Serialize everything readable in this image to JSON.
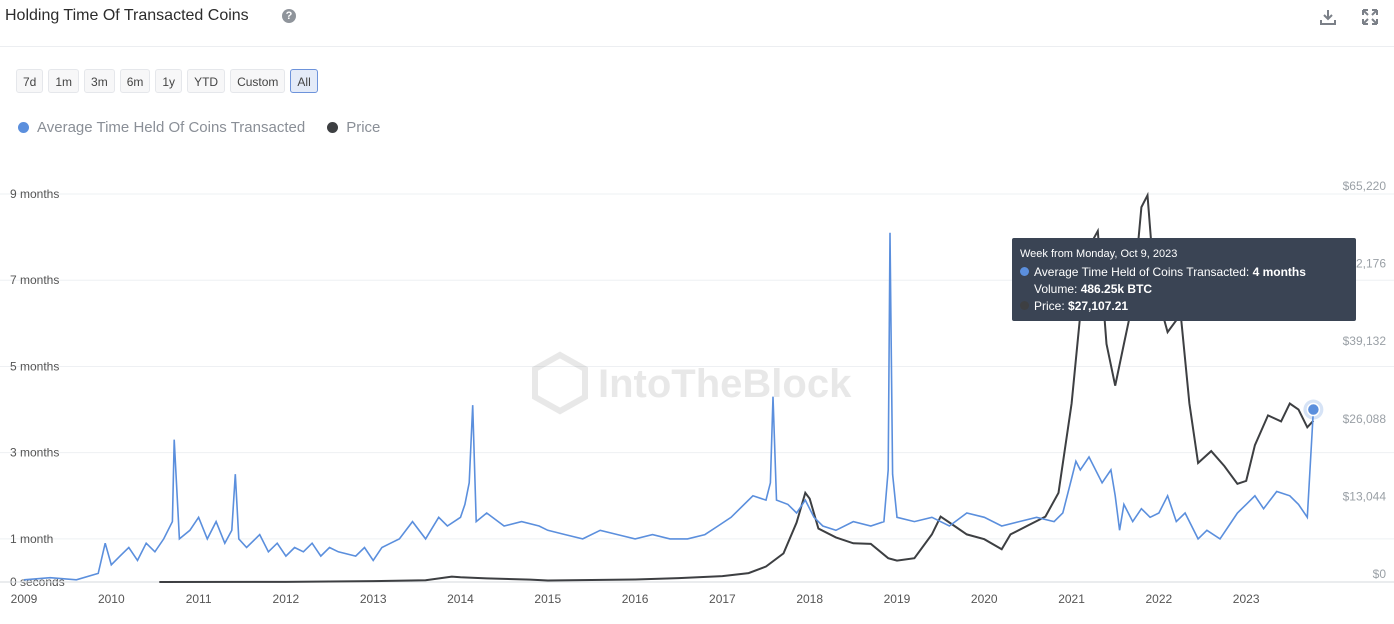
{
  "header": {
    "title": "Holding Time Of Transacted Coins",
    "help_icon": "question-circle-icon",
    "download_icon": "download-icon",
    "expand_icon": "expand-icon"
  },
  "ranges": [
    {
      "label": "7d"
    },
    {
      "label": "1m"
    },
    {
      "label": "3m"
    },
    {
      "label": "6m"
    },
    {
      "label": "1y"
    },
    {
      "label": "YTD"
    },
    {
      "label": "Custom"
    },
    {
      "label": "All",
      "active": true
    }
  ],
  "colors": {
    "avg": "#5b8fdd",
    "price": "#3d3f42",
    "grid": "#eef0f3"
  },
  "watermark": "IntoTheBlock",
  "tooltip": {
    "header": "Week from Monday, Oct 9, 2023",
    "avg_label": "Average Time Held of Coins Transacted:",
    "avg_value": "4 months",
    "volume_label": "Volume:",
    "volume_value": "486.25k BTC",
    "price_label": "Price:",
    "price_value": "$27,107.21"
  },
  "chart_data": {
    "type": "line",
    "x_ticks": [
      "2009",
      "2010",
      "2011",
      "2012",
      "2013",
      "2014",
      "2015",
      "2016",
      "2017",
      "2018",
      "2019",
      "2020",
      "2021",
      "2022",
      "2023"
    ],
    "y_left_ticks": [
      "0 seconds",
      "1 month",
      "3 months",
      "5 months",
      "7 months",
      "9 months"
    ],
    "y_right_ticks": [
      "$0",
      "$13,044",
      "$26,088",
      "$39,132",
      "$52,176",
      "$65,220"
    ],
    "y_left_unit": "months",
    "y_left_max": 9,
    "y_right_max": 65220,
    "legend": [
      "Average Time Held Of Coins Transacted",
      "Price"
    ],
    "series": [
      {
        "name": "Average Time Held Of Coins Transacted",
        "axis": "left",
        "points": [
          [
            2009.0,
            0.05
          ],
          [
            2009.3,
            0.1
          ],
          [
            2009.6,
            0.05
          ],
          [
            2009.85,
            0.2
          ],
          [
            2009.93,
            0.9
          ],
          [
            2010.0,
            0.4
          ],
          [
            2010.1,
            0.6
          ],
          [
            2010.2,
            0.8
          ],
          [
            2010.3,
            0.5
          ],
          [
            2010.4,
            0.9
          ],
          [
            2010.5,
            0.7
          ],
          [
            2010.6,
            1.0
          ],
          [
            2010.7,
            1.4
          ],
          [
            2010.72,
            3.3
          ],
          [
            2010.78,
            1.0
          ],
          [
            2010.9,
            1.2
          ],
          [
            2011.0,
            1.5
          ],
          [
            2011.1,
            1.0
          ],
          [
            2011.2,
            1.4
          ],
          [
            2011.3,
            0.9
          ],
          [
            2011.38,
            1.2
          ],
          [
            2011.42,
            2.5
          ],
          [
            2011.46,
            1.0
          ],
          [
            2011.55,
            0.8
          ],
          [
            2011.7,
            1.1
          ],
          [
            2011.8,
            0.7
          ],
          [
            2011.9,
            0.9
          ],
          [
            2012.0,
            0.6
          ],
          [
            2012.1,
            0.8
          ],
          [
            2012.2,
            0.7
          ],
          [
            2012.3,
            0.9
          ],
          [
            2012.4,
            0.6
          ],
          [
            2012.5,
            0.8
          ],
          [
            2012.6,
            0.7
          ],
          [
            2012.8,
            0.6
          ],
          [
            2012.9,
            0.8
          ],
          [
            2013.0,
            0.5
          ],
          [
            2013.1,
            0.8
          ],
          [
            2013.2,
            0.9
          ],
          [
            2013.3,
            1.0
          ],
          [
            2013.45,
            1.4
          ],
          [
            2013.6,
            1.0
          ],
          [
            2013.75,
            1.5
          ],
          [
            2013.85,
            1.3
          ],
          [
            2014.0,
            1.5
          ],
          [
            2014.05,
            1.8
          ],
          [
            2014.1,
            2.3
          ],
          [
            2014.14,
            4.1
          ],
          [
            2014.18,
            1.4
          ],
          [
            2014.3,
            1.6
          ],
          [
            2014.5,
            1.3
          ],
          [
            2014.7,
            1.4
          ],
          [
            2014.9,
            1.3
          ],
          [
            2015.0,
            1.2
          ],
          [
            2015.2,
            1.1
          ],
          [
            2015.4,
            1.0
          ],
          [
            2015.6,
            1.2
          ],
          [
            2015.8,
            1.1
          ],
          [
            2016.0,
            1.0
          ],
          [
            2016.2,
            1.1
          ],
          [
            2016.4,
            1.0
          ],
          [
            2016.6,
            1.0
          ],
          [
            2016.8,
            1.1
          ],
          [
            2016.95,
            1.3
          ],
          [
            2017.1,
            1.5
          ],
          [
            2017.2,
            1.7
          ],
          [
            2017.35,
            2.0
          ],
          [
            2017.5,
            1.9
          ],
          [
            2017.55,
            2.3
          ],
          [
            2017.58,
            4.3
          ],
          [
            2017.62,
            1.9
          ],
          [
            2017.75,
            1.8
          ],
          [
            2017.85,
            1.6
          ],
          [
            2017.95,
            1.9
          ],
          [
            2018.05,
            1.5
          ],
          [
            2018.15,
            1.3
          ],
          [
            2018.3,
            1.2
          ],
          [
            2018.5,
            1.4
          ],
          [
            2018.7,
            1.3
          ],
          [
            2018.85,
            1.4
          ],
          [
            2018.9,
            2.6
          ],
          [
            2018.92,
            8.1
          ],
          [
            2018.95,
            2.5
          ],
          [
            2019.0,
            1.5
          ],
          [
            2019.2,
            1.4
          ],
          [
            2019.4,
            1.5
          ],
          [
            2019.6,
            1.3
          ],
          [
            2019.8,
            1.6
          ],
          [
            2020.0,
            1.5
          ],
          [
            2020.2,
            1.3
          ],
          [
            2020.4,
            1.4
          ],
          [
            2020.6,
            1.5
          ],
          [
            2020.8,
            1.4
          ],
          [
            2020.9,
            1.6
          ],
          [
            2021.0,
            2.4
          ],
          [
            2021.05,
            2.8
          ],
          [
            2021.1,
            2.6
          ],
          [
            2021.2,
            2.9
          ],
          [
            2021.35,
            2.3
          ],
          [
            2021.45,
            2.6
          ],
          [
            2021.5,
            2.0
          ],
          [
            2021.55,
            1.2
          ],
          [
            2021.6,
            1.8
          ],
          [
            2021.7,
            1.4
          ],
          [
            2021.8,
            1.7
          ],
          [
            2021.9,
            1.5
          ],
          [
            2022.0,
            1.6
          ],
          [
            2022.1,
            2.0
          ],
          [
            2022.2,
            1.4
          ],
          [
            2022.3,
            1.6
          ],
          [
            2022.45,
            1.0
          ],
          [
            2022.55,
            1.2
          ],
          [
            2022.7,
            1.0
          ],
          [
            2022.8,
            1.3
          ],
          [
            2022.9,
            1.6
          ],
          [
            2023.0,
            1.8
          ],
          [
            2023.1,
            2.0
          ],
          [
            2023.2,
            1.7
          ],
          [
            2023.35,
            2.1
          ],
          [
            2023.5,
            2.0
          ],
          [
            2023.6,
            1.8
          ],
          [
            2023.7,
            1.5
          ],
          [
            2023.77,
            4.0
          ]
        ]
      },
      {
        "name": "Price",
        "axis": "right",
        "points": [
          [
            2010.55,
            0
          ],
          [
            2012.0,
            20
          ],
          [
            2013.0,
            150
          ],
          [
            2013.6,
            300
          ],
          [
            2013.9,
            900
          ],
          [
            2014.0,
            800
          ],
          [
            2014.3,
            600
          ],
          [
            2014.8,
            400
          ],
          [
            2015.0,
            250
          ],
          [
            2016.0,
            420
          ],
          [
            2016.5,
            650
          ],
          [
            2017.0,
            1000
          ],
          [
            2017.3,
            1500
          ],
          [
            2017.5,
            2600
          ],
          [
            2017.7,
            4800
          ],
          [
            2017.85,
            10000
          ],
          [
            2017.95,
            15000
          ],
          [
            2018.0,
            14000
          ],
          [
            2018.1,
            9000
          ],
          [
            2018.3,
            7500
          ],
          [
            2018.5,
            6500
          ],
          [
            2018.7,
            6400
          ],
          [
            2018.9,
            4000
          ],
          [
            2019.0,
            3600
          ],
          [
            2019.2,
            4000
          ],
          [
            2019.4,
            8000
          ],
          [
            2019.5,
            11000
          ],
          [
            2019.6,
            10000
          ],
          [
            2019.8,
            8000
          ],
          [
            2020.0,
            7200
          ],
          [
            2020.2,
            5500
          ],
          [
            2020.3,
            8000
          ],
          [
            2020.5,
            9500
          ],
          [
            2020.7,
            11000
          ],
          [
            2020.85,
            15000
          ],
          [
            2021.0,
            30000
          ],
          [
            2021.1,
            45000
          ],
          [
            2021.15,
            55000
          ],
          [
            2021.3,
            59000
          ],
          [
            2021.4,
            40000
          ],
          [
            2021.5,
            33000
          ],
          [
            2021.6,
            40000
          ],
          [
            2021.7,
            47000
          ],
          [
            2021.8,
            63000
          ],
          [
            2021.87,
            65000
          ],
          [
            2021.95,
            50000
          ],
          [
            2022.1,
            42000
          ],
          [
            2022.25,
            45000
          ],
          [
            2022.35,
            30000
          ],
          [
            2022.45,
            20000
          ],
          [
            2022.6,
            22000
          ],
          [
            2022.75,
            19500
          ],
          [
            2022.9,
            16500
          ],
          [
            2023.0,
            17000
          ],
          [
            2023.1,
            23000
          ],
          [
            2023.25,
            28000
          ],
          [
            2023.4,
            27000
          ],
          [
            2023.5,
            30000
          ],
          [
            2023.6,
            29000
          ],
          [
            2023.7,
            26000
          ],
          [
            2023.77,
            27107
          ]
        ]
      }
    ]
  }
}
